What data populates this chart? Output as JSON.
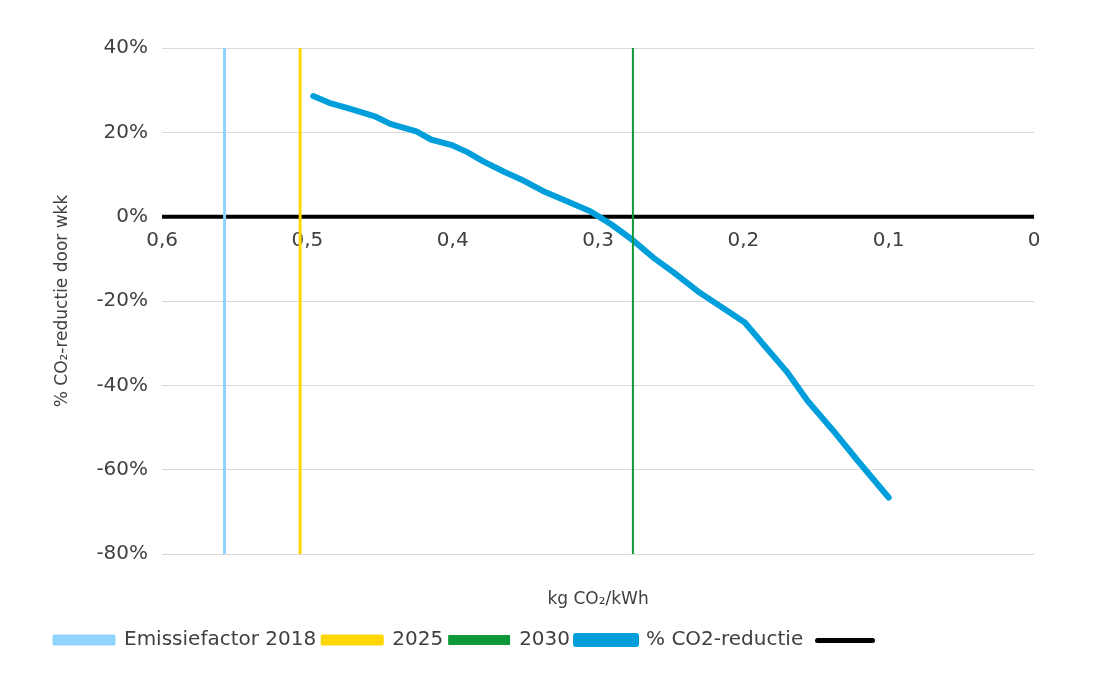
{
  "chart_data": {
    "type": "line",
    "ylabel": "% CO₂-reductie door wkk",
    "xlabel": "kg CO₂/kWh",
    "xlim": [
      0.6,
      0
    ],
    "xticks": [
      {
        "value": 0.6,
        "label": "0,6"
      },
      {
        "value": 0.5,
        "label": "0,5"
      },
      {
        "value": 0.4,
        "label": "0,4"
      },
      {
        "value": 0.3,
        "label": "0,3"
      },
      {
        "value": 0.2,
        "label": "0,2"
      },
      {
        "value": 0.1,
        "label": "0,1"
      },
      0
    ],
    "ylim": [
      -80,
      40
    ],
    "yticks": [
      {
        "value": -80,
        "label": "-80%"
      },
      {
        "value": -60,
        "label": "-60%"
      },
      {
        "value": -40,
        "label": "-40%"
      },
      {
        "value": -20,
        "label": "-20%"
      },
      {
        "value": 0,
        "label": "0%"
      },
      {
        "value": 20,
        "label": "20%"
      },
      {
        "value": 40,
        "label": "40%"
      }
    ],
    "grid": "y",
    "legend": "bottom",
    "marker": "none",
    "line_style": "solid",
    "series": [
      {
        "name": "Emissiefactor 2018",
        "color": "#8fd3fe",
        "x": [
          0.557,
          0.557
        ],
        "values": [
          -80,
          40
        ]
      },
      {
        "name": "2025",
        "color": "#ffd700",
        "x": [
          0.505,
          0.505
        ],
        "values": [
          -80,
          40
        ]
      },
      {
        "name": "2030",
        "color": "#0f9a3a",
        "x": [
          0.276,
          0.276
        ],
        "values": [
          -80,
          40
        ]
      },
      {
        "name": "% CO2-reductie",
        "color": "#009fdb",
        "x": [
          0.496,
          0.485,
          0.471,
          0.453,
          0.443,
          0.425,
          0.415,
          0.4,
          0.39,
          0.379,
          0.365,
          0.351,
          0.338,
          0.323,
          0.305,
          0.291,
          0.276,
          0.262,
          0.248,
          0.231,
          0.213,
          0.199,
          0.185,
          0.17,
          0.156,
          0.139,
          0.121,
          0.1
        ],
        "values": [
          28.6,
          27,
          25.6,
          23.7,
          22,
          20.2,
          18.3,
          16.9,
          15.3,
          13.1,
          10.7,
          8.5,
          6.1,
          3.9,
          1.2,
          -1.8,
          -5.6,
          -9.7,
          -13.2,
          -17.8,
          -21.9,
          -25.1,
          -30.8,
          -36.8,
          -43.6,
          -50.4,
          -58,
          -66.6
        ]
      },
      {
        "color": "#000000",
        "x": [
          0.6,
          0
        ],
        "values": [
          0,
          0
        ]
      }
    ]
  }
}
